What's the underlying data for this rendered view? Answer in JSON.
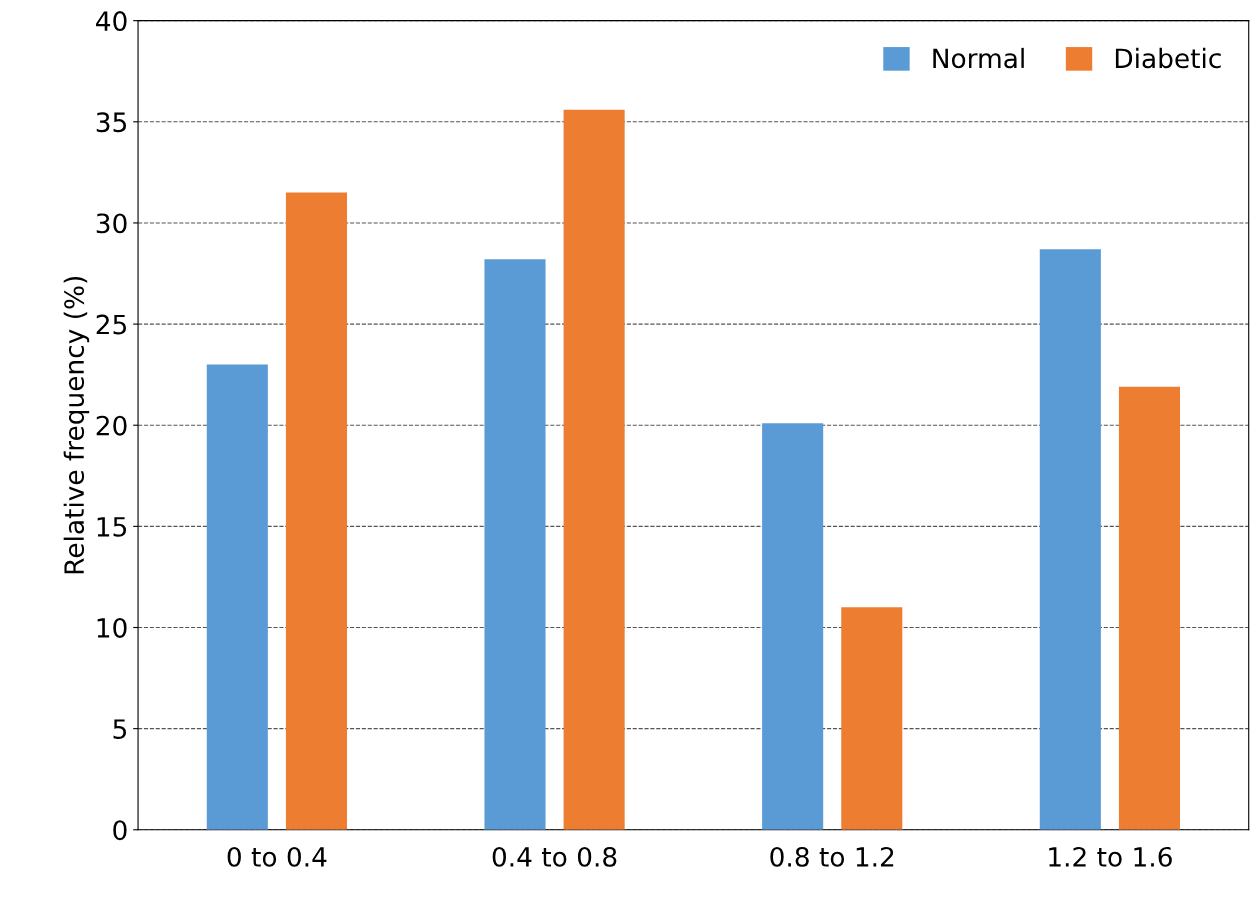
{
  "chart_data": {
    "type": "bar",
    "ylabel": "Relative frequency (%)",
    "categories": [
      "0 to 0.4",
      "0.4 to 0.8",
      "0.8 to 1.2",
      "1.2 to 1.6"
    ],
    "series": [
      {
        "name": "Normal",
        "color": "#5b9bd5",
        "values": [
          23.0,
          28.2,
          20.1,
          28.7
        ]
      },
      {
        "name": "Diabetic",
        "color": "#ed7d31",
        "values": [
          31.5,
          35.6,
          11.0,
          21.9
        ]
      }
    ],
    "ylim": [
      0,
      40
    ],
    "yticks": [
      0,
      5,
      10,
      15,
      20,
      25,
      30,
      35,
      40
    ],
    "grid": "y",
    "legend": "top right"
  }
}
